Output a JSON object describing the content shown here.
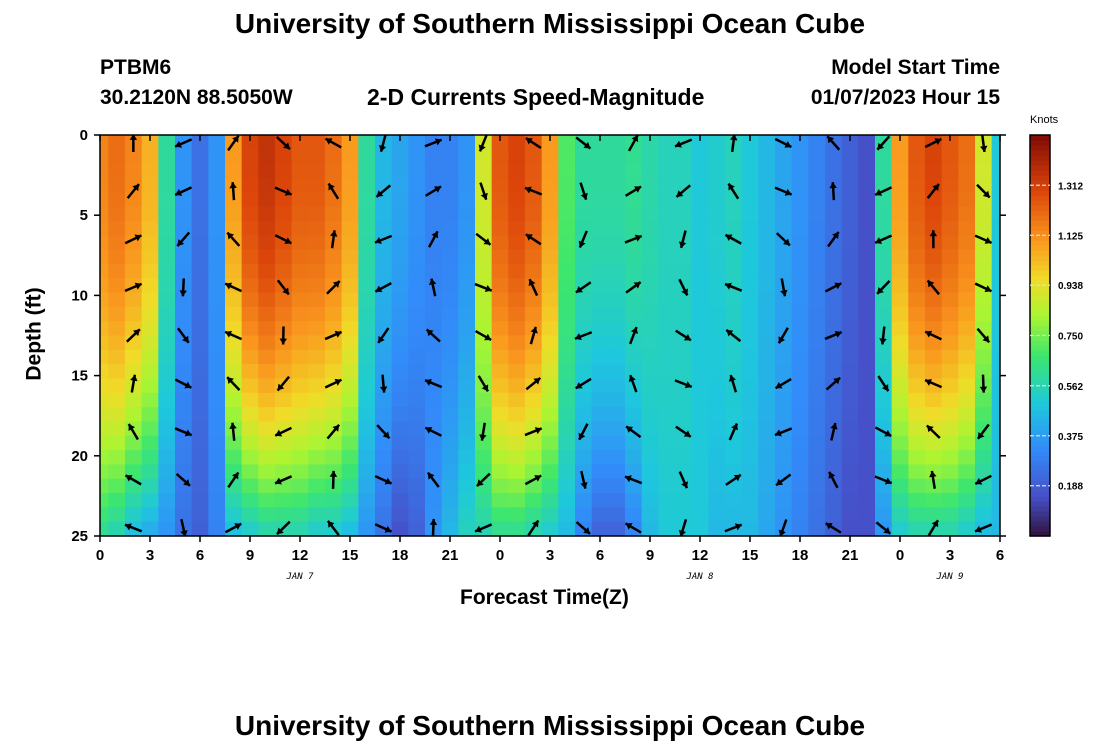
{
  "header": {
    "title": "University of Southern Mississippi Ocean Cube",
    "station": "PTBM6",
    "location": "30.2120N  88.5050W",
    "subtitle": "2-D Currents Speed-Magnitude",
    "model_start_label": "Model Start Time",
    "model_start_value": "01/07/2023 Hour 15"
  },
  "footer": {
    "title": "University of Southern Mississippi Ocean Cube"
  },
  "chart_data": {
    "type": "heatmap",
    "title": "2-D Currents Speed-Magnitude",
    "xlabel": "Forecast Time(Z)",
    "ylabel": "Depth (ft)",
    "x_ticks": [
      "0",
      "3",
      "6",
      "9",
      "12",
      "15",
      "18",
      "21",
      "0",
      "3",
      "6",
      "9",
      "12",
      "15",
      "18",
      "21",
      "0",
      "3",
      "6"
    ],
    "x_hours": [
      0,
      3,
      6,
      9,
      12,
      15,
      18,
      21,
      24,
      27,
      30,
      33,
      36,
      39,
      42,
      45,
      48,
      51,
      54
    ],
    "date_labels": [
      {
        "text": "JAN 7",
        "hour": 12
      },
      {
        "text": "JAN 8",
        "hour": 36
      },
      {
        "text": "JAN 9",
        "hour": 51
      }
    ],
    "y_ticks": [
      0,
      5,
      10,
      15,
      20,
      25
    ],
    "ylim": [
      0,
      25
    ],
    "xlim": [
      0,
      54
    ],
    "y_inverted": true,
    "colorbar": {
      "label": "Knots",
      "ticks": [
        "1.312",
        "1.125",
        "0.938",
        "0.750",
        "0.562",
        "0.375",
        "0.188"
      ],
      "tick_values": [
        1.312,
        1.125,
        0.938,
        0.75,
        0.562,
        0.375,
        0.188
      ],
      "range": [
        0.0,
        1.5
      ]
    },
    "speed_profile": {
      "hours": [
        0,
        1,
        2,
        3,
        4,
        5,
        6,
        7,
        8,
        9,
        10,
        11,
        12,
        13,
        14,
        15,
        16,
        17,
        18,
        19,
        20,
        21,
        22,
        23,
        24,
        25,
        26,
        27,
        28,
        29,
        30,
        31,
        32,
        33,
        34,
        35,
        36,
        37,
        38,
        39,
        40,
        41,
        42,
        43,
        44,
        45,
        46,
        47,
        48,
        49,
        50,
        51,
        52,
        53,
        54
      ],
      "surface_knots": [
        1.15,
        1.2,
        1.15,
        1.05,
        0.6,
        0.35,
        0.25,
        0.35,
        1.1,
        1.3,
        1.35,
        1.3,
        1.25,
        1.25,
        1.2,
        1.1,
        0.6,
        0.45,
        0.4,
        0.35,
        0.3,
        0.3,
        0.35,
        0.9,
        1.25,
        1.3,
        1.25,
        1.1,
        0.7,
        0.6,
        0.6,
        0.6,
        0.62,
        0.58,
        0.55,
        0.55,
        0.5,
        0.52,
        0.55,
        0.5,
        0.45,
        0.4,
        0.35,
        0.3,
        0.25,
        0.2,
        0.15,
        0.6,
        1.1,
        1.25,
        1.3,
        1.25,
        1.2,
        0.9,
        0.5
      ],
      "bottom_knots": [
        0.6,
        0.55,
        0.45,
        0.4,
        0.35,
        0.25,
        0.2,
        0.3,
        0.45,
        0.5,
        0.55,
        0.55,
        0.55,
        0.5,
        0.5,
        0.45,
        0.35,
        0.25,
        0.15,
        0.2,
        0.35,
        0.45,
        0.55,
        0.55,
        0.6,
        0.6,
        0.55,
        0.5,
        0.45,
        0.3,
        0.2,
        0.2,
        0.3,
        0.45,
        0.5,
        0.5,
        0.5,
        0.45,
        0.45,
        0.45,
        0.4,
        0.35,
        0.3,
        0.25,
        0.2,
        0.15,
        0.15,
        0.35,
        0.5,
        0.55,
        0.55,
        0.55,
        0.5,
        0.45,
        0.45
      ]
    }
  }
}
